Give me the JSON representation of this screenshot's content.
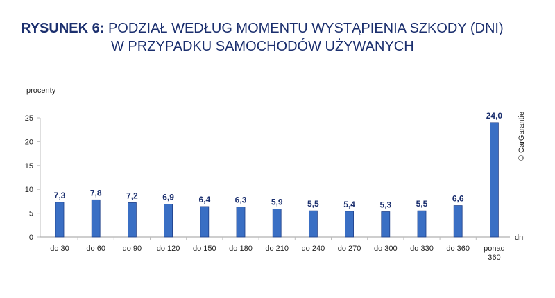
{
  "title": {
    "prefix": "RYSUNEK 6:",
    "line1_rest": "PODZIAŁ WEDŁUG MOMENTU WYSTĄPIENIA SZKODY (DNI)",
    "line2": "W PRZYPADKU SAMOCHODÓW UŻYWANYCH"
  },
  "copyright": "© CarGarantie",
  "chart_data": {
    "type": "bar",
    "ylabel": "procenty",
    "xlabel": "dni",
    "ylim": [
      0,
      25
    ],
    "yticks": [
      0,
      5,
      10,
      15,
      20,
      25
    ],
    "grid": false,
    "categories": [
      "do 30",
      "do 60",
      "do 90",
      "do 120",
      "do 150",
      "do 180",
      "do 210",
      "do 240",
      "do 270",
      "do 300",
      "do 330",
      "do 360",
      "ponad 360"
    ],
    "values": [
      7.3,
      7.8,
      7.2,
      6.9,
      6.4,
      6.3,
      5.9,
      5.5,
      5.4,
      5.3,
      5.5,
      6.6,
      24.0
    ],
    "value_labels": [
      "7,3",
      "7,8",
      "7,2",
      "6,9",
      "6,4",
      "6,3",
      "5,9",
      "5,5",
      "5,4",
      "5,3",
      "5,5",
      "6,6",
      "24,0"
    ],
    "bar_color": "#3a6fc4",
    "bar_edge_color": "#1f3f88"
  }
}
